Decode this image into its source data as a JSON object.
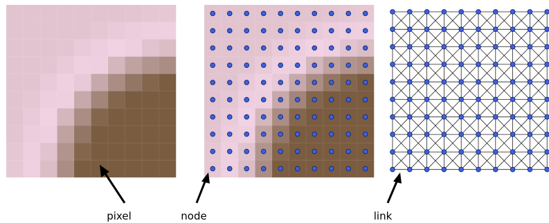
{
  "labels": {
    "pixel": "pixel",
    "node": "node",
    "link": "link"
  }
}
